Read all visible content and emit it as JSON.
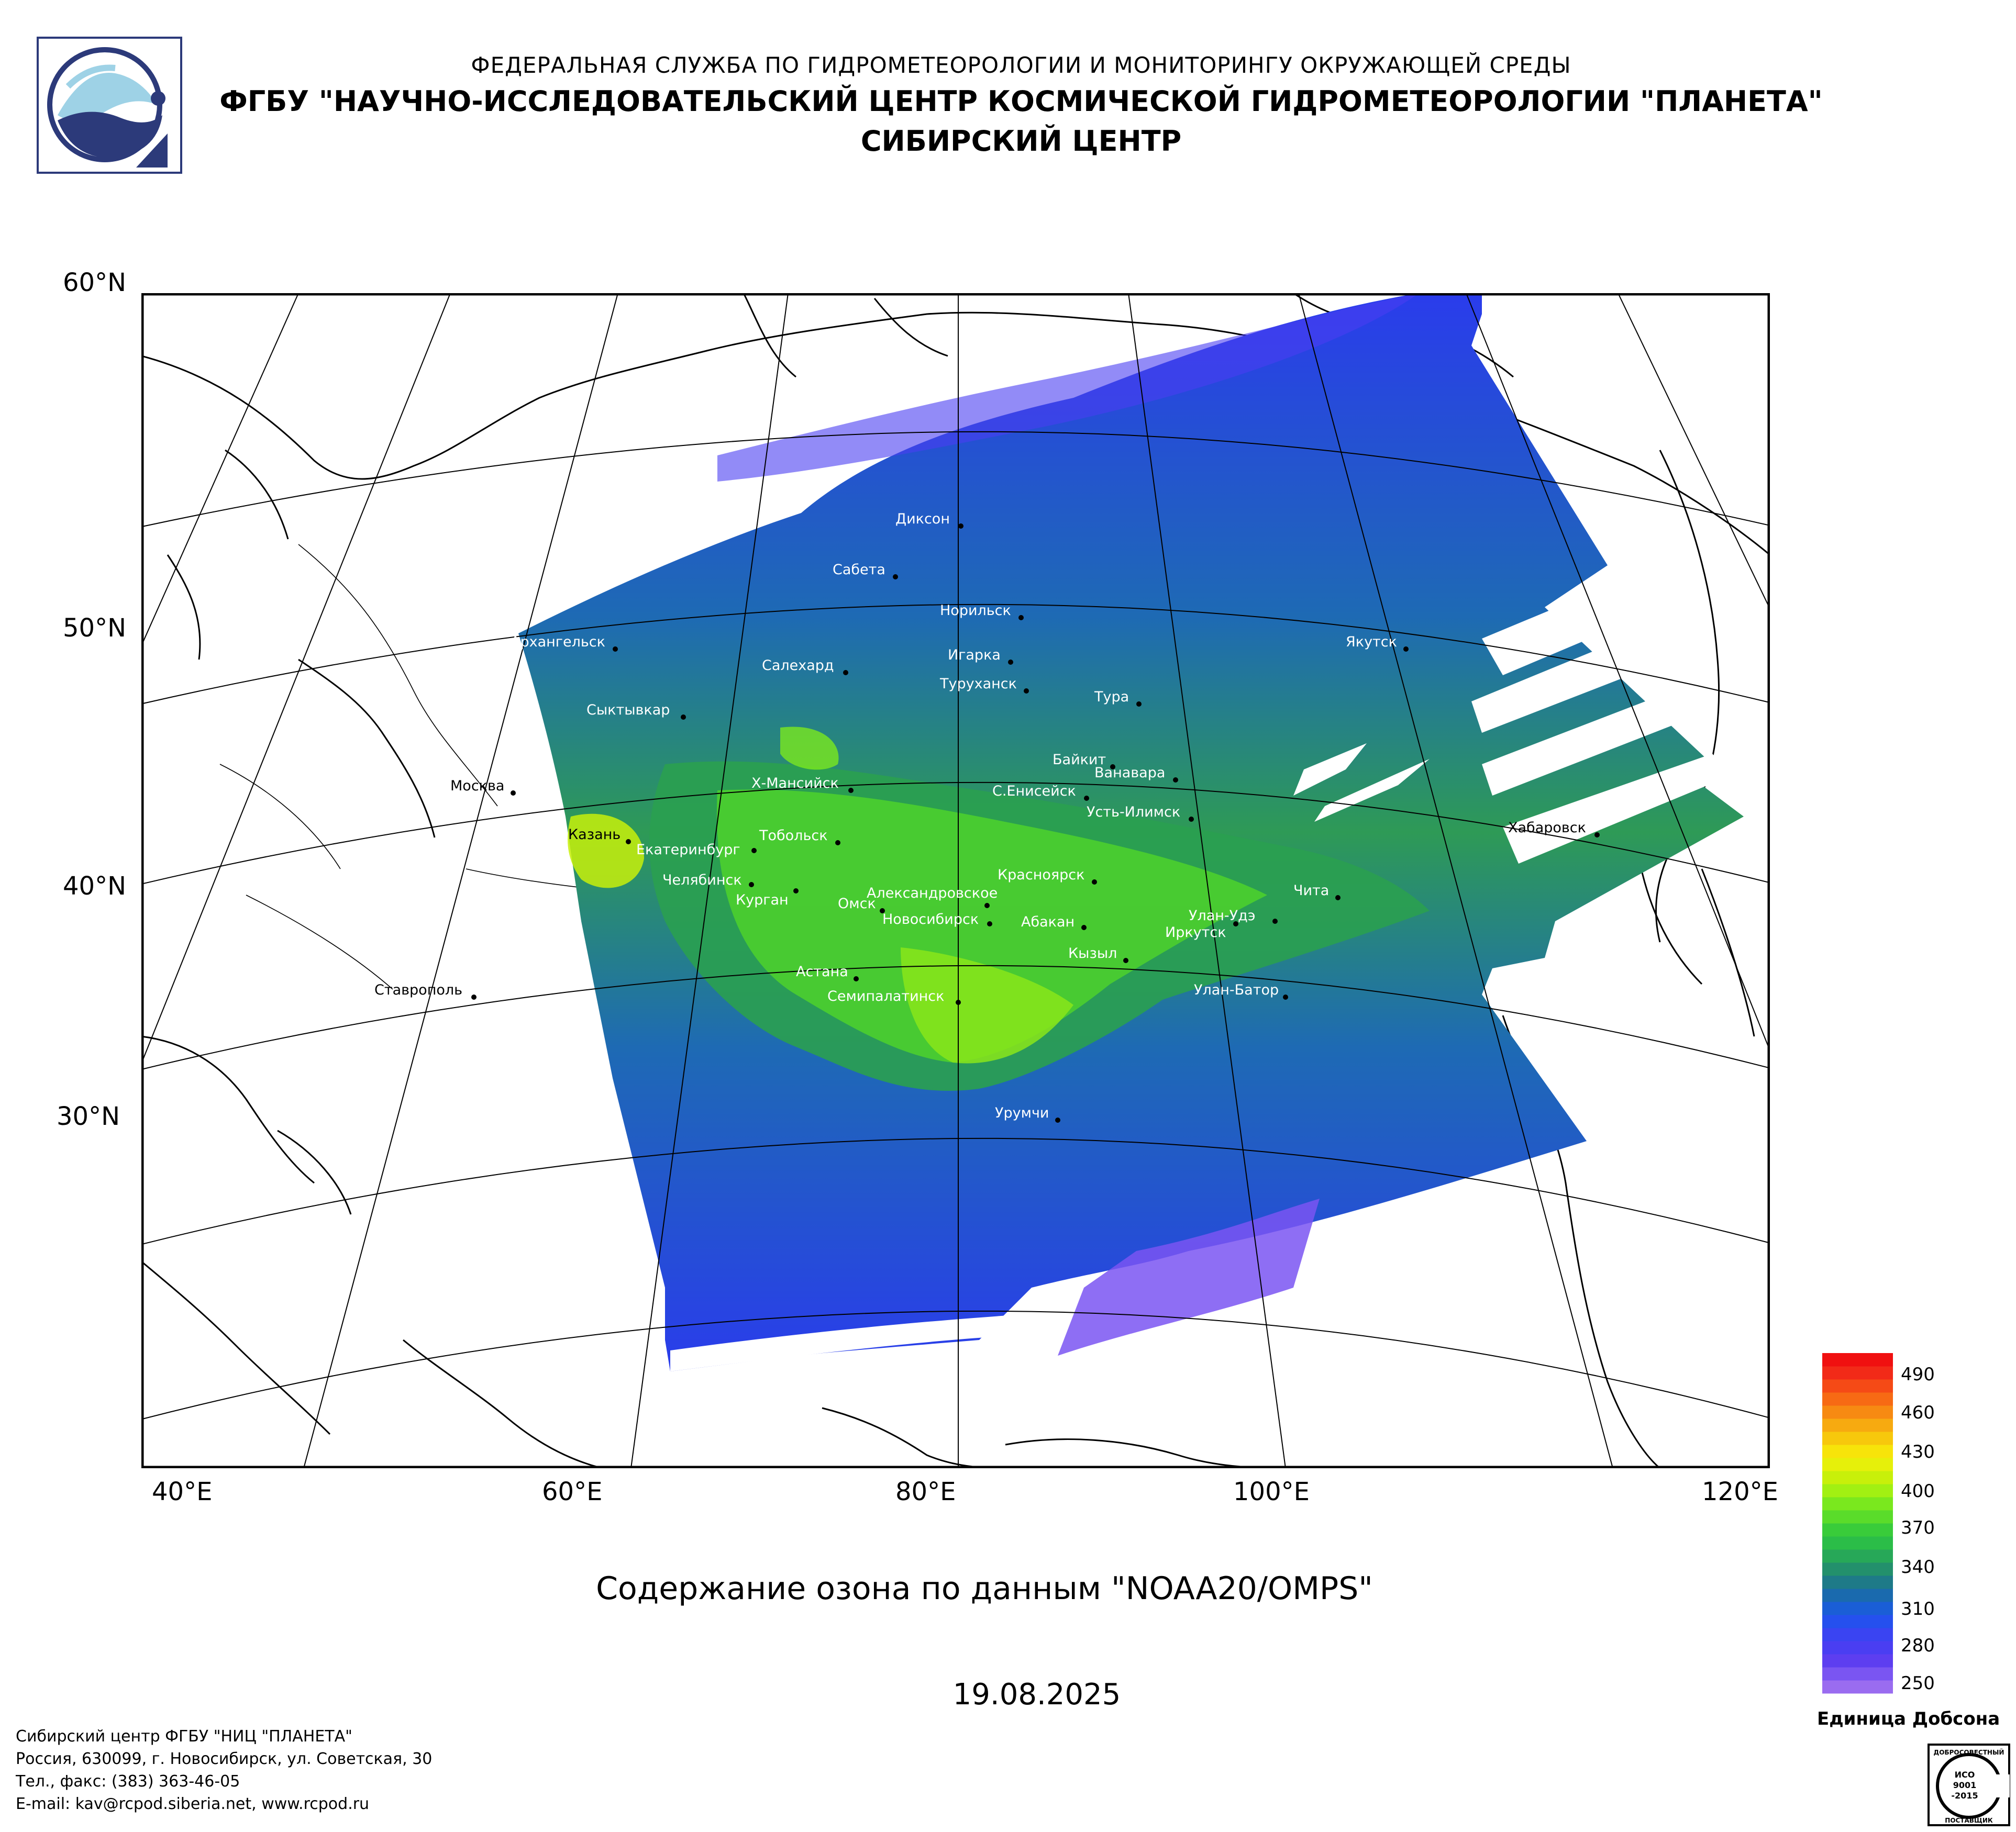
{
  "header": {
    "line1": "ФЕДЕРАЛЬНАЯ СЛУЖБА ПО ГИДРОМЕТЕОРОЛОГИИ И МОНИТОРИНГУ ОКРУЖАЮЩЕЙ СРЕДЫ",
    "line2": "ФГБУ \"НАУЧНО-ИССЛЕДОВАТЕЛЬСКИЙ ЦЕНТР КОСМИЧЕСКОЙ ГИДРОМЕТЕОРОЛОГИИ \"ПЛАНЕТА\"",
    "line3": "СИБИРСКИЙ ЦЕНТР"
  },
  "map": {
    "lat_labels": [
      "60°N",
      "50°N",
      "40°N",
      "30°N"
    ],
    "lon_labels": [
      "40°E",
      "60°E",
      "80°E",
      "100°E",
      "120°E"
    ],
    "colors": {
      "ocean": "#ffffff",
      "land": "#ffffff",
      "coast": "#000000",
      "frame": "#000000"
    },
    "cities": [
      {
        "name": "Диксон"
      },
      {
        "name": "Сабета"
      },
      {
        "name": "Норильск"
      },
      {
        "name": "Архангельск"
      },
      {
        "name": "Якутск"
      },
      {
        "name": "Салехард"
      },
      {
        "name": "Игарка"
      },
      {
        "name": "Туруханск"
      },
      {
        "name": "Тура"
      },
      {
        "name": "Сыктывкар"
      },
      {
        "name": "Байкит"
      },
      {
        "name": "Ванавара"
      },
      {
        "name": "Москва"
      },
      {
        "name": "Х-Мансийск"
      },
      {
        "name": "С.Енисейск"
      },
      {
        "name": "Усть-Илимск"
      },
      {
        "name": "Казань"
      },
      {
        "name": "Тобольск"
      },
      {
        "name": "Хабаровск"
      },
      {
        "name": "Екатеринбург"
      },
      {
        "name": "Челябинск"
      },
      {
        "name": "Курган"
      },
      {
        "name": "Красноярск"
      },
      {
        "name": "Александровское"
      },
      {
        "name": "Омск"
      },
      {
        "name": "Чита"
      },
      {
        "name": "Новосибирск"
      },
      {
        "name": "Абакан"
      },
      {
        "name": "Улан-Удэ"
      },
      {
        "name": "Иркутск"
      },
      {
        "name": "Кызыл"
      },
      {
        "name": "Астана"
      },
      {
        "name": "Ставрополь"
      },
      {
        "name": "Семипалатинск"
      },
      {
        "name": "Улан-Батор"
      },
      {
        "name": "Урумчи"
      }
    ]
  },
  "caption": "Содержание озона по данным \"NOAA20/OMPS\"",
  "date": "19.08.2025",
  "legend": {
    "ticks": [
      "490",
      "460",
      "430",
      "400",
      "370",
      "340",
      "310",
      "280",
      "250"
    ],
    "title": "Единица Добсона",
    "colors": [
      "#9a6cf0",
      "#7a55f2",
      "#5d3ef0",
      "#4a3ef2",
      "#3a44f2",
      "#2550ee",
      "#1a5ed6",
      "#1a6aae",
      "#1e7a88",
      "#23906c",
      "#27a858",
      "#2bbd48",
      "#39cc3a",
      "#5adc2a",
      "#7ae81e",
      "#a2f012",
      "#c8f00a",
      "#e6f00a",
      "#f7e40a",
      "#f7c80c",
      "#f7aa10",
      "#f78a12",
      "#f76a14",
      "#f54a16",
      "#f22a18",
      "#f01010"
    ]
  },
  "footer": {
    "line1": "Сибирский центр ФГБУ \"НИЦ \"ПЛАНЕТА\"",
    "line2": "Россия, 630099, г. Новосибирск, ул. Советская, 30",
    "line3": "Тел., факс: (383) 363-46-05",
    "line4": "E-mail: kav@rcpod.siberia.net, www.rcpod.ru"
  },
  "cert": {
    "line1": "ДОБРОСОВЕСТНЫЙ",
    "line2": "ИСО",
    "line3": "9001",
    "line4": "-2015",
    "line5": "ПОСТАВЩИК"
  }
}
